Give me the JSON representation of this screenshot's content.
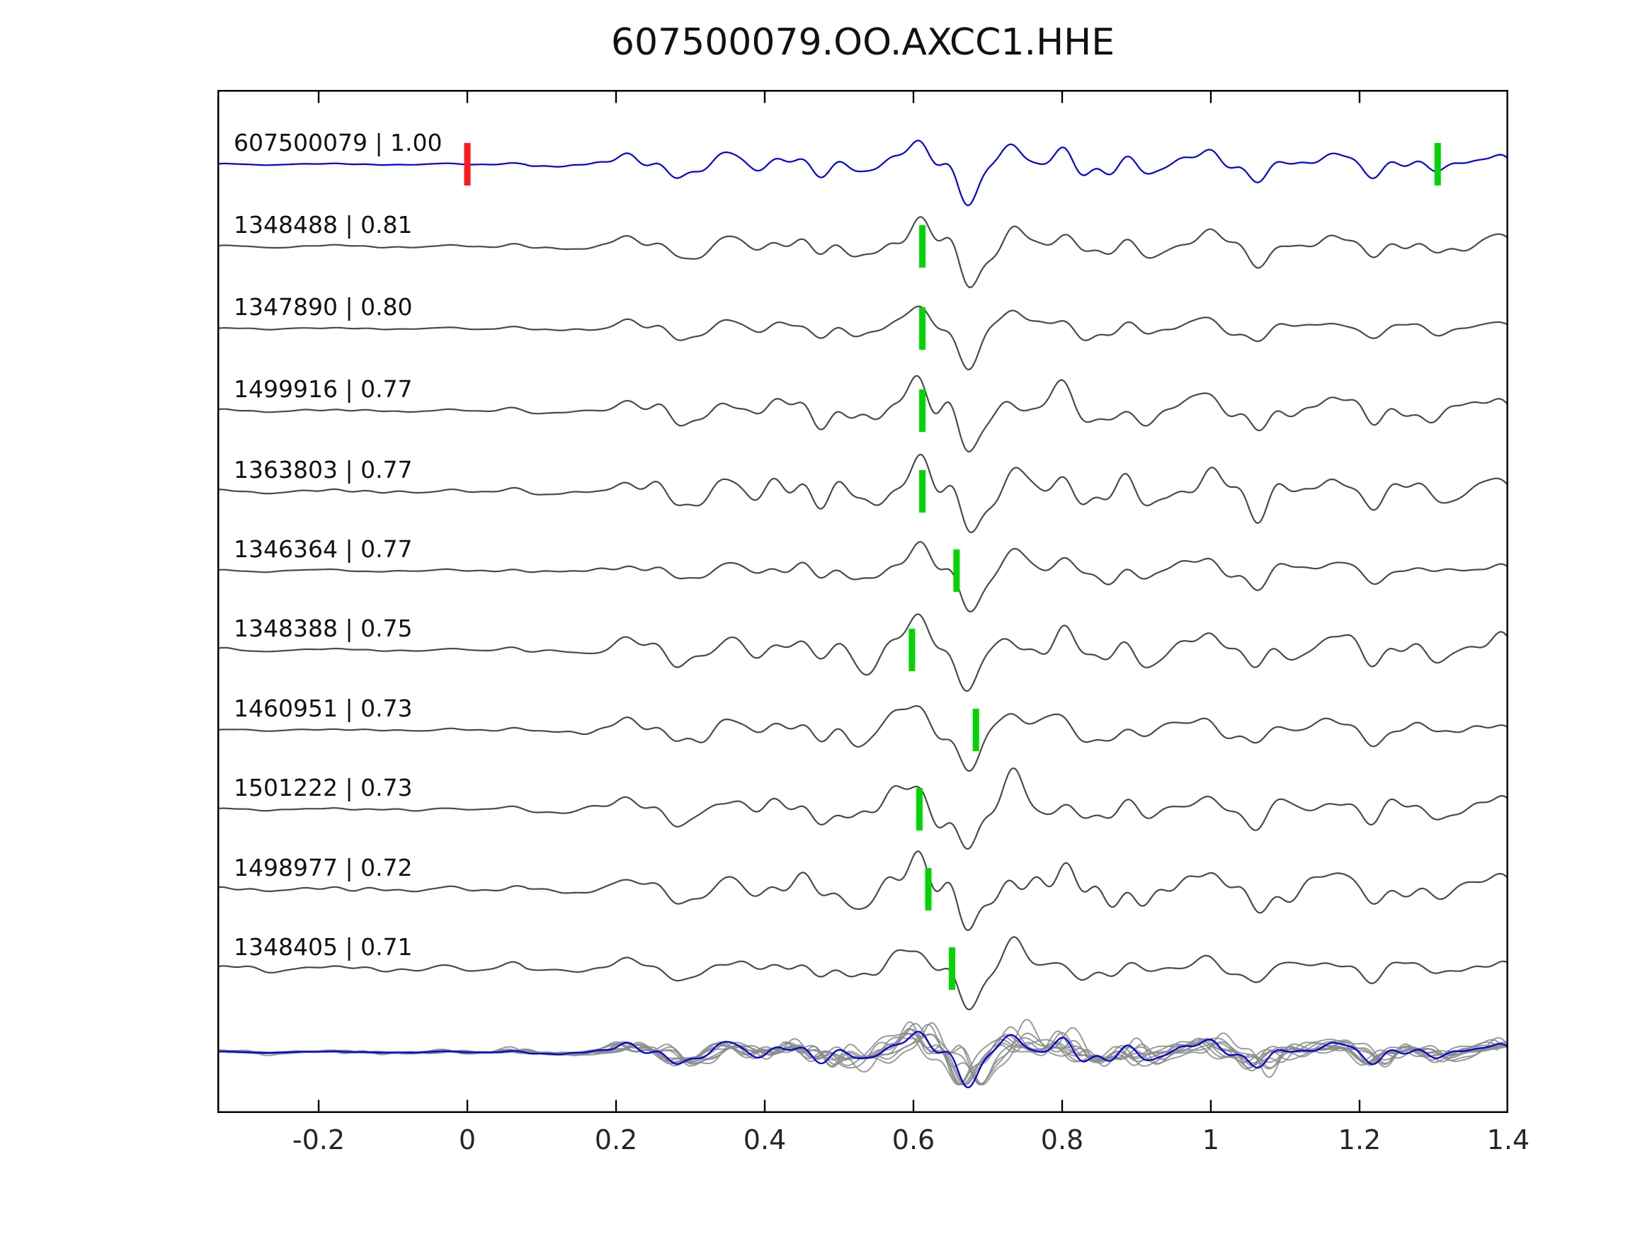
{
  "title": "607500079.OO.AXCC1.HHE",
  "chart_data": {
    "type": "line",
    "title": "607500079.OO.AXCC1.HHE",
    "subtitle": "",
    "xlabel": "",
    "ylabel": "",
    "xlim": [
      -0.336,
      1.4
    ],
    "grid": false,
    "legend": "none",
    "xticks": [
      -0.2,
      0,
      0.2,
      0.4,
      0.6,
      0.8,
      1,
      1.2,
      1.4
    ],
    "xtick_labels": [
      "-0.2",
      "0",
      "0.2",
      "0.4",
      "0.6",
      "0.8",
      "1",
      "1.2",
      "1.4"
    ],
    "master_seed": 424242,
    "colors": {
      "template_trace": "#0000dd",
      "member_trace": "#4a4a4a",
      "overlay_member": "#8a8a8a",
      "pick_green": "#00d500",
      "pick_red": "#ff1a1a"
    },
    "traces": [
      {
        "id": "607500079",
        "correlation": "1.00",
        "label": "607500079 | 1.00",
        "color": "#0000dd",
        "is_template": true,
        "seed": 101,
        "mix": 0.12,
        "pre": 0.55,
        "picks": [
          {
            "x": 0.0,
            "color": "#ff1a1a"
          },
          {
            "x": 1.305,
            "color": "#00d500"
          }
        ]
      },
      {
        "id": "1348488",
        "correlation": "0.81",
        "label": "1348488 | 0.81",
        "color": "#4a4a4a",
        "is_template": false,
        "seed": 202,
        "mix": 0.3,
        "pre": 1.0,
        "picks": [
          {
            "x": 0.612,
            "color": "#00d500"
          }
        ]
      },
      {
        "id": "1347890",
        "correlation": "0.80",
        "label": "1347890 | 0.80",
        "color": "#4a4a4a",
        "is_template": false,
        "seed": 303,
        "mix": 0.3,
        "pre": 1.0,
        "picks": [
          {
            "x": 0.612,
            "color": "#00d500"
          }
        ]
      },
      {
        "id": "1499916",
        "correlation": "0.77",
        "label": "1499916 | 0.77",
        "color": "#4a4a4a",
        "is_template": false,
        "seed": 404,
        "mix": 0.32,
        "pre": 1.0,
        "picks": [
          {
            "x": 0.612,
            "color": "#00d500"
          }
        ]
      },
      {
        "id": "1363803",
        "correlation": "0.77",
        "label": "1363803 | 0.77",
        "color": "#4a4a4a",
        "is_template": false,
        "seed": 505,
        "mix": 0.32,
        "pre": 1.0,
        "picks": [
          {
            "x": 0.612,
            "color": "#00d500"
          }
        ]
      },
      {
        "id": "1346364",
        "correlation": "0.77",
        "label": "1346364 | 0.77",
        "color": "#4a4a4a",
        "is_template": false,
        "seed": 606,
        "mix": 0.32,
        "pre": 1.0,
        "picks": [
          {
            "x": 0.658,
            "color": "#00d500"
          }
        ]
      },
      {
        "id": "1348388",
        "correlation": "0.75",
        "label": "1348388 | 0.75",
        "color": "#4a4a4a",
        "is_template": false,
        "seed": 707,
        "mix": 0.34,
        "pre": 1.2,
        "picks": [
          {
            "x": 0.598,
            "color": "#00d500"
          }
        ]
      },
      {
        "id": "1460951",
        "correlation": "0.73",
        "label": "1460951 | 0.73",
        "color": "#4a4a4a",
        "is_template": false,
        "seed": 808,
        "mix": 0.36,
        "pre": 1.0,
        "picks": [
          {
            "x": 0.684,
            "color": "#00d500"
          }
        ]
      },
      {
        "id": "1501222",
        "correlation": "0.73",
        "label": "1501222 | 0.73",
        "color": "#4a4a4a",
        "is_template": false,
        "seed": 909,
        "mix": 0.36,
        "pre": 1.0,
        "picks": [
          {
            "x": 0.608,
            "color": "#00d500"
          }
        ]
      },
      {
        "id": "1498977",
        "correlation": "0.72",
        "label": "1498977 | 0.72",
        "color": "#4a4a4a",
        "is_template": false,
        "seed": 1010,
        "mix": 0.38,
        "pre": 1.6,
        "picks": [
          {
            "x": 0.62,
            "color": "#00d500"
          }
        ]
      },
      {
        "id": "1348405",
        "correlation": "0.71",
        "label": "1348405 | 0.71",
        "color": "#4a4a4a",
        "is_template": false,
        "seed": 1111,
        "mix": 0.4,
        "pre": 3.0,
        "picks": [
          {
            "x": 0.652,
            "color": "#00d500"
          }
        ]
      }
    ],
    "overlay_row": {
      "description": "all member traces overlaid in gray with template in blue",
      "template_color": "#0000dd",
      "member_color": "#8a8a8a"
    }
  }
}
